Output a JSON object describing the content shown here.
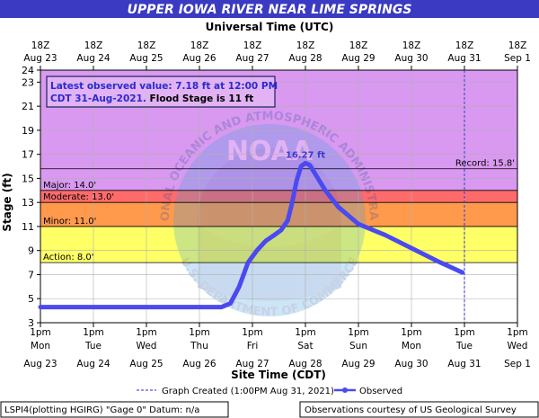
{
  "title": "UPPER IOWA RIVER NEAR LIME SPRINGS",
  "top_axis_label": "Universal Time (UTC)",
  "bottom_axis_label": "Site Time (CDT)",
  "y_axis_label": "Stage (ft)",
  "info_box": {
    "line1": "Latest observed value: 7.18 ft at 12:00 PM",
    "line2_blue": "CDT 31-Aug-2021.",
    "line2_black": " Flood Stage is 11 ft"
  },
  "footer": {
    "graph_created": "Graph Created (1:00PM Aug 31, 2021)",
    "observed_label": "Observed",
    "datum_text": "LSPI4(plotting HGIRG) \"Gage 0\" Datum: n/a",
    "credit_text": "Observations courtesy of US Geological Survey"
  },
  "watermark": {
    "arc_text": "NATIONAL OCEANIC AND ATMOSPHERIC ADMINISTRATION",
    "bottom_text": "U.S. DEPARTMENT OF COMMERCE",
    "center_text": "NOAA"
  },
  "colors": {
    "title_bar": "#3a3ac2",
    "record_zone": "#d999f0",
    "major_zone": "#ff6b6b",
    "moderate_zone": "#ff9a4d",
    "minor_zone": "#ffff66",
    "action_zone": "#ffffff",
    "observed_line": "#4a4af0",
    "grid": "#b0b0b0"
  },
  "chart_data": {
    "type": "line",
    "ylim": [
      3,
      24
    ],
    "y_ticks": [
      3,
      5,
      7,
      9,
      11,
      13,
      15,
      17,
      19,
      21,
      23,
      24
    ],
    "x_start": "2021-08-23T13:00",
    "x_end": "2021-09-01T13:00",
    "bottom_ticks": [
      {
        "time": "1pm",
        "day": "Mon",
        "date": "Aug 23"
      },
      {
        "time": "1pm",
        "day": "Tue",
        "date": "Aug 24"
      },
      {
        "time": "1pm",
        "day": "Wed",
        "date": "Aug 25"
      },
      {
        "time": "1pm",
        "day": "Thu",
        "date": "Aug 26"
      },
      {
        "time": "1pm",
        "day": "Fri",
        "date": "Aug 27"
      },
      {
        "time": "1pm",
        "day": "Sat",
        "date": "Aug 28"
      },
      {
        "time": "1pm",
        "day": "Sun",
        "date": "Aug 29"
      },
      {
        "time": "1pm",
        "day": "Mon",
        "date": "Aug 30"
      },
      {
        "time": "1pm",
        "day": "Tue",
        "date": "Aug 31"
      },
      {
        "time": "1pm",
        "day": "Wed",
        "date": "Sep 1"
      }
    ],
    "top_ticks": [
      {
        "time": "18Z",
        "date": "Aug 23"
      },
      {
        "time": "18Z",
        "date": "Aug 24"
      },
      {
        "time": "18Z",
        "date": "Aug 25"
      },
      {
        "time": "18Z",
        "date": "Aug 26"
      },
      {
        "time": "18Z",
        "date": "Aug 27"
      },
      {
        "time": "18Z",
        "date": "Aug 28"
      },
      {
        "time": "18Z",
        "date": "Aug 29"
      },
      {
        "time": "18Z",
        "date": "Aug 30"
      },
      {
        "time": "18Z",
        "date": "Aug 31"
      },
      {
        "time": "18Z",
        "date": "Sep 1"
      }
    ],
    "flood_categories": [
      {
        "name": "Action",
        "label": "Action: 8.0'",
        "value": 8.0
      },
      {
        "name": "Minor",
        "label": "Minor: 11.0'",
        "value": 11.0
      },
      {
        "name": "Moderate",
        "label": "Moderate: 13.0'",
        "value": 13.0
      },
      {
        "name": "Major",
        "label": "Major: 14.0'",
        "value": 14.0
      }
    ],
    "record": {
      "label": "Record: 15.8'",
      "value": 15.8
    },
    "peak": {
      "label": "16.27 ft",
      "time": "2021-08-28T13:00",
      "value": 16.27
    },
    "graph_created_time": "2021-08-31T13:00",
    "series": [
      {
        "name": "Observed",
        "points": [
          [
            "2021-08-23T13:00",
            4.3
          ],
          [
            "2021-08-24T13:00",
            4.3
          ],
          [
            "2021-08-25T13:00",
            4.3
          ],
          [
            "2021-08-26T13:00",
            4.3
          ],
          [
            "2021-08-26T23:00",
            4.3
          ],
          [
            "2021-08-27T03:00",
            4.6
          ],
          [
            "2021-08-27T07:00",
            6.0
          ],
          [
            "2021-08-27T11:00",
            8.0
          ],
          [
            "2021-08-27T15:00",
            9.0
          ],
          [
            "2021-08-27T19:00",
            9.8
          ],
          [
            "2021-08-27T23:00",
            10.3
          ],
          [
            "2021-08-28T02:00",
            10.7
          ],
          [
            "2021-08-28T05:00",
            11.5
          ],
          [
            "2021-08-28T07:00",
            13.0
          ],
          [
            "2021-08-28T09:00",
            14.8
          ],
          [
            "2021-08-28T11:00",
            16.0
          ],
          [
            "2021-08-28T13:00",
            16.27
          ],
          [
            "2021-08-28T15:00",
            16.1
          ],
          [
            "2021-08-28T18:00",
            15.2
          ],
          [
            "2021-08-28T22:00",
            14.0
          ],
          [
            "2021-08-29T04:00",
            12.6
          ],
          [
            "2021-08-29T13:00",
            11.2
          ],
          [
            "2021-08-30T01:00",
            10.3
          ],
          [
            "2021-08-30T13:00",
            9.2
          ],
          [
            "2021-08-31T01:00",
            8.1
          ],
          [
            "2021-08-31T12:00",
            7.18
          ]
        ]
      }
    ]
  }
}
